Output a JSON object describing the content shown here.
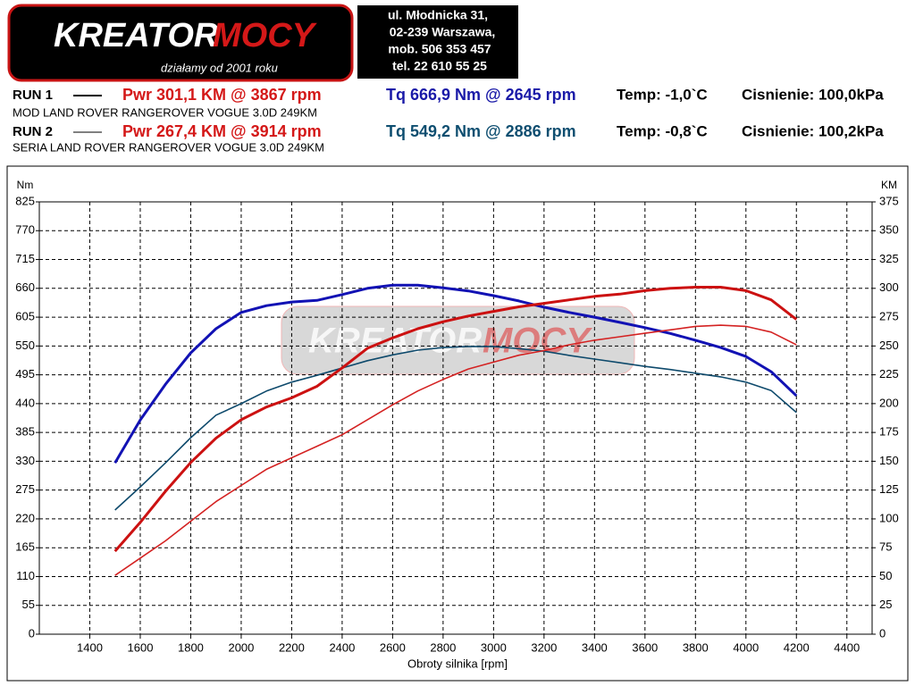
{
  "header": {
    "logo_left": "KREATOR",
    "logo_right": "MOCY",
    "slogan": "działamy od 2001 roku",
    "address": [
      "ul. Młodnicka 31,",
      "02-239  Warszawa,",
      "mob.  506 353 457",
      "tel.  22 610 55 25"
    ]
  },
  "runs": [
    {
      "label": "RUN 1",
      "power": "Pwr  301,1 KM @ 3867 rpm",
      "torque": "Tq 666,9 Nm @ 2645 rpm",
      "temp": "Temp: -1,0`C",
      "pressure": "Cisnienie: 100,0kPa",
      "description": "MOD LAND ROVER RANGEROVER VOGUE 3.0D 249KM"
    },
    {
      "label": "RUN 2",
      "power": "Pwr  267,4 KM @ 3914 rpm",
      "torque": "Tq 549,2 Nm @ 2886 rpm",
      "temp": "Temp: -0,8`C",
      "pressure": "Cisnienie: 100,2kPa",
      "description": "SERIA LAND ROVER RANGEROVER VOGUE 3.0D 249KM"
    }
  ],
  "chart_data": {
    "type": "line",
    "y_label": "Nm",
    "y2_label": "KM",
    "x_label": "Obroty silnika [rpm]",
    "x": [
      1500,
      1600,
      1700,
      1800,
      1900,
      2000,
      2100,
      2200,
      2300,
      2400,
      2500,
      2600,
      2700,
      2800,
      2900,
      3000,
      3100,
      3200,
      3300,
      3400,
      3500,
      3600,
      3700,
      3800,
      3900,
      4000,
      4100,
      4200
    ],
    "series": [
      {
        "color": "#1212b4",
        "axis": "y",
        "values": [
          327,
          409,
          477,
          537,
          583,
          614,
          627,
          634,
          637,
          648,
          660,
          666,
          666,
          661,
          655,
          646,
          636,
          624,
          614,
          605,
          595,
          585,
          574,
          561,
          547,
          530,
          501,
          455
        ]
      },
      {
        "color": "#0e4a6c",
        "axis": "y",
        "values": [
          237,
          281,
          327,
          375,
          418,
          440,
          464,
          481,
          494,
          508,
          522,
          533,
          542,
          547,
          549,
          549,
          545,
          540,
          532,
          525,
          518,
          511,
          505,
          498,
          491,
          481,
          465,
          423
        ]
      },
      {
        "color": "#cc1111",
        "axis": "y2",
        "values": [
          72,
          97,
          124,
          149,
          170,
          186,
          197,
          205,
          215,
          231,
          248,
          257,
          265,
          271,
          276,
          280,
          284,
          287,
          290,
          293,
          295,
          298,
          300,
          301,
          301,
          298,
          290,
          273
        ]
      },
      {
        "color": "#d42222",
        "axis": "y2",
        "values": [
          51,
          66,
          81,
          98,
          115,
          129,
          143,
          153,
          163,
          173,
          186,
          199,
          211,
          221,
          230,
          236,
          242,
          246,
          251,
          255,
          258,
          261,
          264,
          267,
          268,
          267,
          262,
          251
        ]
      }
    ],
    "xlim": [
      1200,
      4500
    ],
    "xticks": [
      1400,
      1600,
      1800,
      2000,
      2200,
      2400,
      2600,
      2800,
      3000,
      3200,
      3400,
      3600,
      3800,
      4000,
      4200,
      4400
    ],
    "ylim": [
      0,
      825
    ],
    "yticks": [
      0,
      55,
      110,
      165,
      220,
      275,
      330,
      385,
      440,
      495,
      550,
      605,
      660,
      715,
      770,
      825
    ],
    "y2lim": [
      0,
      375
    ],
    "y2ticks": [
      0,
      25,
      50,
      75,
      100,
      125,
      150,
      175,
      200,
      225,
      250,
      275,
      300,
      325,
      350,
      375
    ],
    "grid": true
  }
}
